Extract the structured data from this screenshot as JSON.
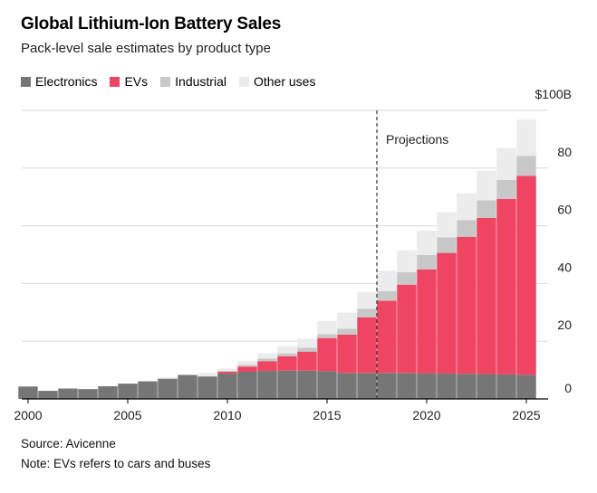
{
  "header": {
    "title": "Global Lithium-Ion Battery Sales",
    "subtitle": "Pack-level sale estimates by product type"
  },
  "legend": {
    "items": [
      {
        "label": "Electronics",
        "color": "#767676"
      },
      {
        "label": "EVs",
        "color": "#ee4562"
      },
      {
        "label": "Industrial",
        "color": "#c8c8c8"
      },
      {
        "label": "Other uses",
        "color": "#ececec"
      }
    ]
  },
  "footer": {
    "source": "Source: Avicenne",
    "note": "Note: EVs refers to cars and buses"
  },
  "chart_data": {
    "type": "bar",
    "stacked": true,
    "categories": [
      2000,
      2001,
      2002,
      2003,
      2004,
      2005,
      2006,
      2007,
      2008,
      2009,
      2010,
      2011,
      2012,
      2013,
      2014,
      2015,
      2016,
      2017,
      2018,
      2019,
      2020,
      2021,
      2022,
      2023,
      2024,
      2025
    ],
    "series": [
      {
        "name": "Electronics",
        "color": "#767676",
        "values": [
          4.3,
          2.8,
          3.6,
          3.4,
          4.4,
          5.3,
          6.1,
          7.0,
          8.3,
          7.8,
          8.8,
          9.4,
          9.7,
          9.8,
          9.8,
          9.6,
          9.0,
          9.0,
          9.0,
          9.0,
          8.9,
          8.8,
          8.7,
          8.6,
          8.5,
          8.4
        ]
      },
      {
        "name": "EVs",
        "color": "#ee4562",
        "values": [
          0,
          0,
          0,
          0,
          0,
          0,
          0,
          0,
          0,
          0,
          0.6,
          1.8,
          3.4,
          5.0,
          6.6,
          11.5,
          13.3,
          19.3,
          25.0,
          30.6,
          36.0,
          41.8,
          47.5,
          54.1,
          60.8,
          68.9
        ]
      },
      {
        "name": "Industrial",
        "color": "#c8c8c8",
        "values": [
          0,
          0,
          0,
          0,
          0,
          0,
          0,
          0,
          0,
          0,
          0.3,
          0.6,
          0.9,
          1.0,
          1.3,
          1.4,
          2.0,
          2.9,
          3.4,
          4.3,
          5.0,
          5.4,
          5.8,
          6.1,
          6.6,
          6.9
        ]
      },
      {
        "name": "Other uses",
        "color": "#ececec",
        "values": [
          0,
          0,
          0,
          0,
          0,
          0,
          0,
          0.5,
          0,
          1.2,
          0.8,
          1.3,
          1.8,
          2.6,
          3.2,
          4.5,
          5.6,
          5.9,
          7.0,
          7.6,
          8.4,
          8.7,
          9.2,
          10.3,
          11.0,
          12.6
        ]
      }
    ],
    "ylim": [
      0,
      100
    ],
    "yticks": [
      0,
      20,
      40,
      60,
      80,
      100
    ],
    "ytick_labels": [
      "0",
      "20",
      "40",
      "60",
      "80",
      "$100B"
    ],
    "xticks": [
      2000,
      2005,
      2010,
      2015,
      2020,
      2025
    ],
    "xtick_labels": [
      "2000",
      "2005",
      "2010",
      "2015",
      "2020",
      "2025"
    ],
    "projection_start": 2017.5,
    "annotation": "Projections",
    "grid": true,
    "y_axis_side": "right"
  }
}
